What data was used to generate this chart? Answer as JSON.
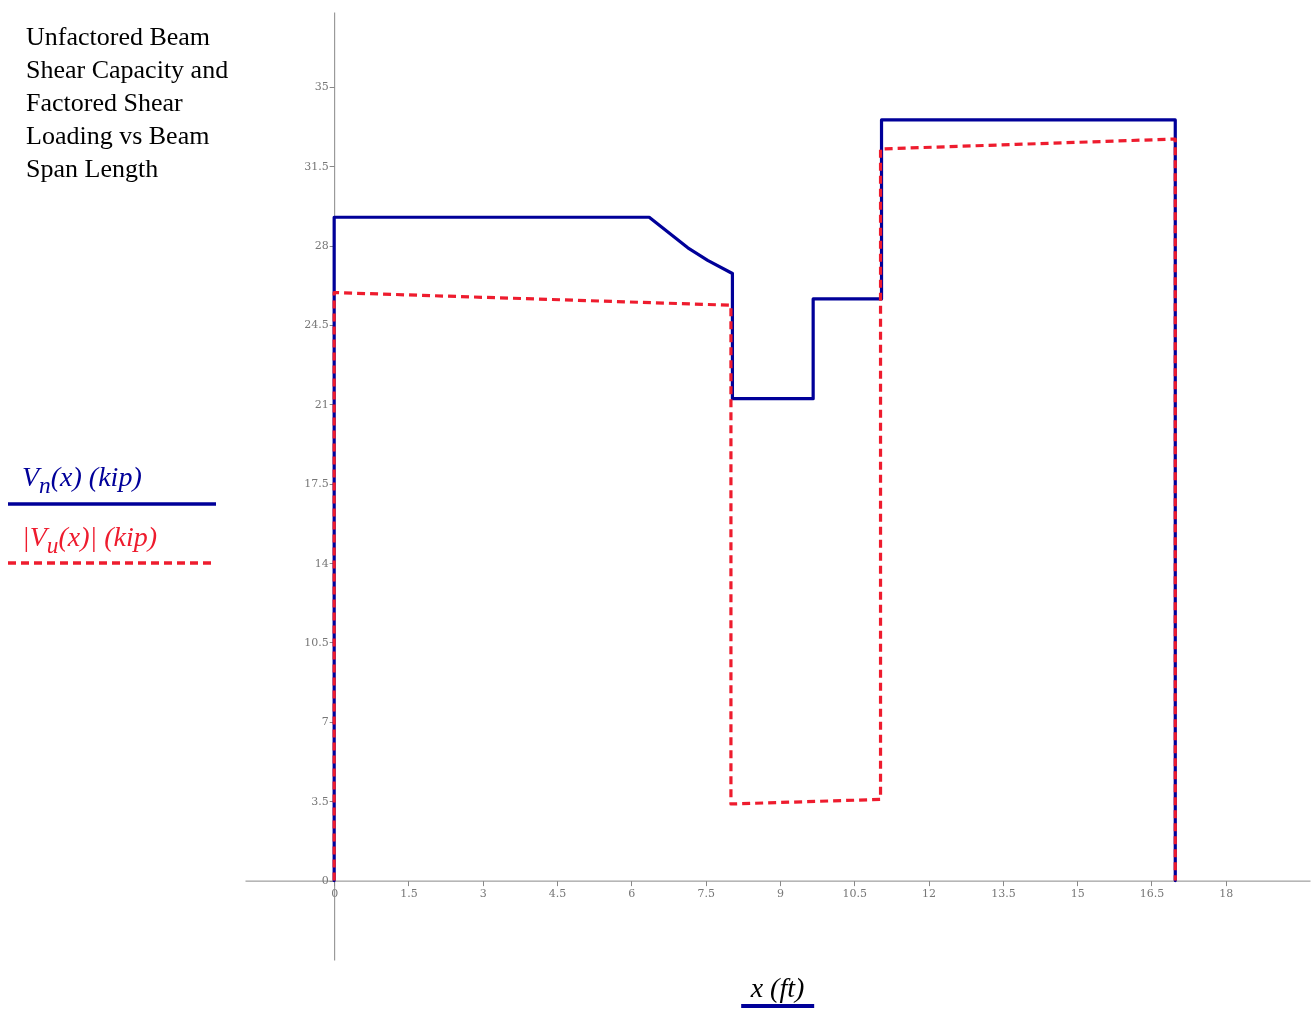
{
  "chart_data": {
    "type": "line",
    "title": "Unfactored Beam Shear Capacity and Factored Shear Loading vs Beam Span Length",
    "xlabel": "x (ft)",
    "xlim": [
      -1.8,
      19.7
    ],
    "ylim": [
      -3.5,
      38.3
    ],
    "xticks": [
      0,
      1.5,
      3,
      4.5,
      6,
      7.5,
      9,
      10.5,
      12,
      13.5,
      15,
      16.5,
      18
    ],
    "yticks": [
      0,
      3.5,
      7,
      10.5,
      14,
      17.5,
      21,
      24.5,
      28,
      31.5,
      35
    ],
    "legend": "left",
    "series": [
      {
        "name": "V$_{n}$(x)  (kip)",
        "color": "#000099",
        "line_style": "solid",
        "x": [
          0,
          0,
          6.36,
          7.14,
          7.54,
          8.04,
          8.04,
          9.67,
          9.67,
          11.05,
          11.05,
          16.98,
          16.98
        ],
        "values": [
          0,
          29.25,
          29.25,
          27.9,
          27.35,
          26.77,
          21.25,
          21.25,
          25.65,
          25.65,
          33.54,
          33.54,
          0
        ]
      },
      {
        "name": "|V$_{u}$(x)|  (kip)",
        "color": "#ee1c2e",
        "line_style": "dashed",
        "x": [
          0,
          0,
          8.01,
          8.01,
          11.03,
          11.03,
          16.98,
          16.98
        ],
        "values": [
          0,
          25.93,
          25.37,
          3.38,
          3.58,
          32.26,
          32.7,
          0
        ]
      }
    ]
  }
}
